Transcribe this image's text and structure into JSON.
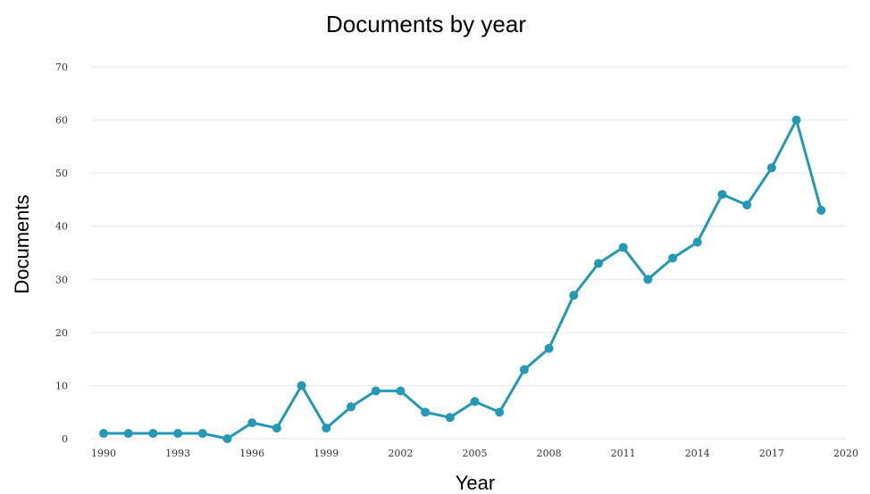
{
  "chart_data": {
    "type": "line",
    "title": "Documents by year",
    "xlabel": "Year",
    "ylabel": "Documents",
    "xlim": [
      1990,
      2020
    ],
    "ylim": [
      0,
      70
    ],
    "x_ticks": [
      1990,
      1993,
      1996,
      1999,
      2002,
      2005,
      2008,
      2011,
      2014,
      2017,
      2020
    ],
    "y_ticks": [
      0,
      10,
      20,
      30,
      40,
      50,
      60,
      70
    ],
    "grid": "horizontal",
    "legend": "none",
    "series": [
      {
        "color": "#2499b5",
        "x": [
          1990,
          1991,
          1992,
          1993,
          1994,
          1995,
          1996,
          1997,
          1998,
          1999,
          2000,
          2001,
          2002,
          2003,
          2004,
          2005,
          2006,
          2007,
          2008,
          2009,
          2010,
          2011,
          2012,
          2013,
          2014,
          2015,
          2016,
          2017,
          2018,
          2019
        ],
        "values": [
          1,
          1,
          1,
          1,
          1,
          0,
          3,
          2,
          10,
          2,
          6,
          9,
          9,
          5,
          4,
          7,
          5,
          13,
          17,
          27,
          33,
          36,
          30,
          34,
          37,
          46,
          44,
          51,
          60,
          43
        ]
      }
    ]
  }
}
